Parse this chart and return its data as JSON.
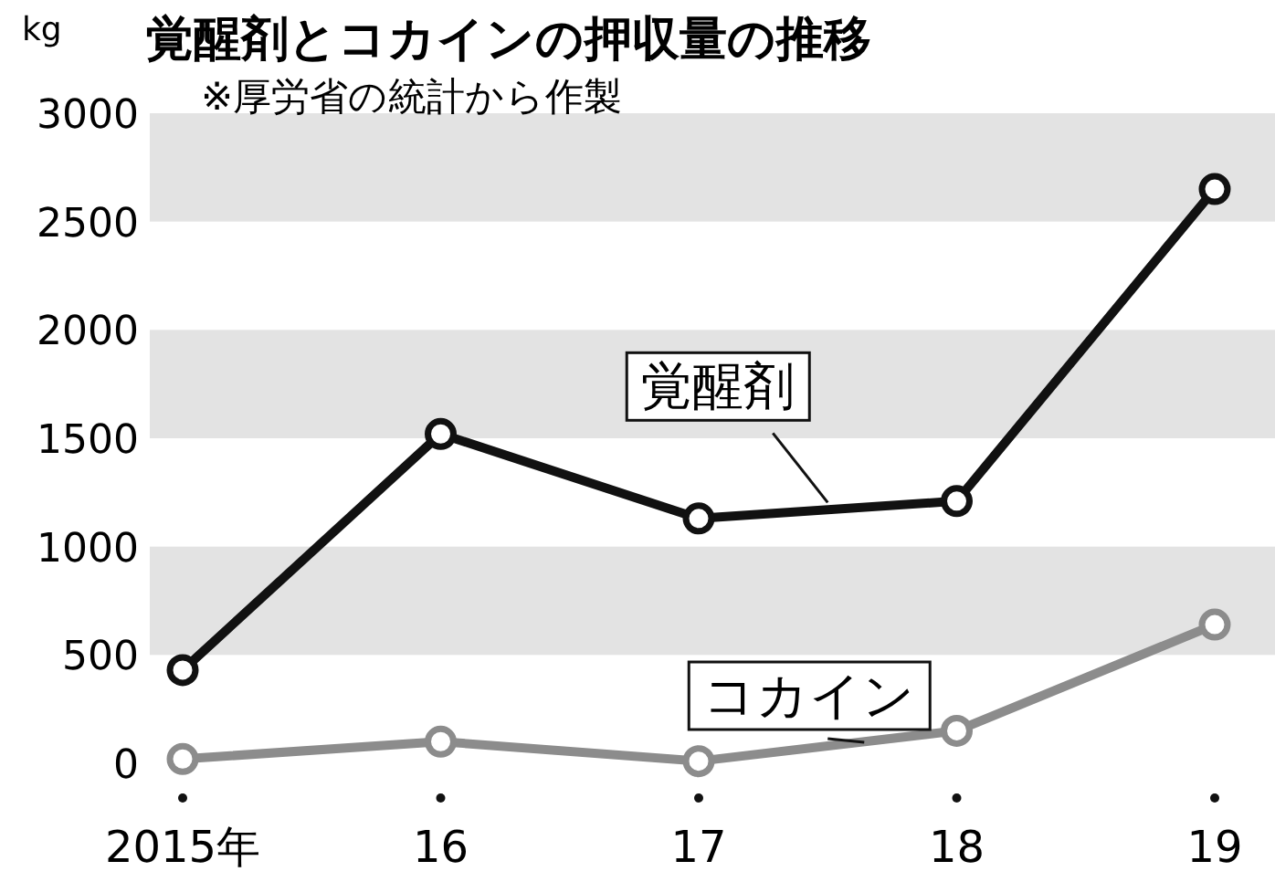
{
  "chart_data": {
    "type": "line",
    "title": "覚醒剤とコカインの押収量の推移",
    "subtitle": "※厚労省の統計から作製",
    "ylabel": "kg",
    "categories": [
      "2015年",
      "16",
      "17",
      "18",
      "19"
    ],
    "series": [
      {
        "name": "覚醒剤",
        "color": "#111111",
        "values": [
          430,
          1520,
          1130,
          1210,
          2650
        ]
      },
      {
        "name": "コカイン",
        "color": "#8c8c8c",
        "values": [
          20,
          100,
          10,
          150,
          640
        ]
      }
    ],
    "ylim": [
      0,
      3000
    ],
    "yticks": [
      0,
      500,
      1000,
      1500,
      2000,
      2500,
      3000
    ],
    "bands": [
      {
        "axis": "y",
        "from": 500,
        "to": 1000,
        "color": "#e3e3e3"
      },
      {
        "axis": "y",
        "from": 1500,
        "to": 2000,
        "color": "#e3e3e3"
      },
      {
        "axis": "y",
        "from": 2500,
        "to": 3000,
        "color": "#e3e3e3"
      }
    ],
    "grid": false,
    "marker": "circle",
    "line_style": "solid"
  }
}
